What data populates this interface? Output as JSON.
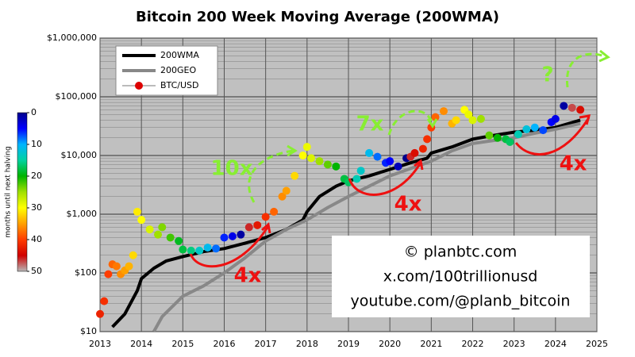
{
  "chart_data": {
    "type": "scatter",
    "title": "Bitcoin 200 Week Moving Average (200WMA)",
    "xlim": [
      2013,
      2025
    ],
    "xticks": [
      2013,
      2014,
      2015,
      2016,
      2017,
      2018,
      2019,
      2020,
      2021,
      2022,
      2023,
      2024,
      2025
    ],
    "ylim": [
      10,
      1000000
    ],
    "log_y": true,
    "grid": true,
    "yticks": [
      {
        "value": 10,
        "label": "$10"
      },
      {
        "value": 100,
        "label": "$100"
      },
      {
        "value": 1000,
        "label": "$1,000"
      },
      {
        "value": 10000,
        "label": "$10,000"
      },
      {
        "value": 100000,
        "label": "$100,000"
      },
      {
        "value": 1000000,
        "label": "$1,000,000"
      }
    ],
    "legend": "top-left",
    "colorbar": {
      "label": "months until next halving",
      "clim": [
        0,
        50
      ],
      "ticks": [
        0,
        10,
        20,
        30,
        40,
        50
      ],
      "colors": [
        "#00008b",
        "#0000ff",
        "#00b4ff",
        "#00d2a0",
        "#00b400",
        "#a0e000",
        "#ffff00",
        "#ffa000",
        "#ff3c00",
        "#d00000",
        "#b8b8b8"
      ]
    },
    "series": [
      {
        "name": "200WMA",
        "color": "#000000",
        "kind": "line",
        "width": 4,
        "x": [
          2013.3,
          2013.6,
          2013.9,
          2014.0,
          2014.3,
          2014.6,
          2015.0,
          2015.5,
          2016.0,
          2016.5,
          2017.0,
          2017.5,
          2017.9,
          2018.0,
          2018.3,
          2018.7,
          2019.0,
          2019.5,
          2020.0,
          2020.5,
          2020.9,
          2021.0,
          2021.5,
          2022.0,
          2022.5,
          2023.0,
          2023.5,
          2024.0,
          2024.6
        ],
        "values": [
          12,
          20,
          50,
          80,
          120,
          160,
          190,
          230,
          260,
          320,
          400,
          550,
          800,
          1100,
          2000,
          3000,
          3700,
          4500,
          5800,
          7500,
          9000,
          11000,
          14000,
          19000,
          22000,
          25000,
          27000,
          30000,
          40000
        ]
      },
      {
        "name": "200GEO",
        "color": "#888888",
        "kind": "line",
        "width": 4,
        "x": [
          2014.3,
          2014.5,
          2015.0,
          2015.5,
          2016.0,
          2016.5,
          2017.0,
          2017.5,
          2018.0,
          2018.5,
          2019.0,
          2019.5,
          2020.0,
          2020.5,
          2021.0,
          2021.5,
          2022.0,
          2022.5,
          2023.0,
          2023.5,
          2024.0,
          2024.6
        ],
        "values": [
          10,
          18,
          40,
          60,
          100,
          180,
          350,
          550,
          800,
          1300,
          2000,
          3000,
          4500,
          6000,
          8000,
          12000,
          16000,
          18000,
          20000,
          24000,
          28000,
          35000
        ]
      },
      {
        "name": "BTC/USD",
        "color": "#dd0000",
        "kind": "dots",
        "x": [
          2013.0,
          2013.1,
          2013.2,
          2013.3,
          2013.4,
          2013.5,
          2013.6,
          2013.7,
          2013.8,
          2013.9,
          2014.0,
          2014.2,
          2014.4,
          2014.5,
          2014.7,
          2014.9,
          2015.0,
          2015.2,
          2015.4,
          2015.6,
          2015.8,
          2016.0,
          2016.2,
          2016.4,
          2016.6,
          2016.8,
          2017.0,
          2017.2,
          2017.4,
          2017.5,
          2017.7,
          2017.9,
          2018.0,
          2018.1,
          2018.3,
          2018.5,
          2018.7,
          2018.9,
          2019.0,
          2019.2,
          2019.3,
          2019.5,
          2019.7,
          2019.9,
          2020.0,
          2020.2,
          2020.4,
          2020.5,
          2020.6,
          2020.8,
          2020.9,
          2021.0,
          2021.1,
          2021.3,
          2021.5,
          2021.6,
          2021.8,
          2021.9,
          2022.0,
          2022.2,
          2022.4,
          2022.6,
          2022.8,
          2022.9,
          2023.1,
          2023.3,
          2023.5,
          2023.7,
          2023.9,
          2024.0,
          2024.2,
          2024.4,
          2024.6
        ],
        "values": [
          20,
          33,
          95,
          140,
          130,
          95,
          110,
          130,
          200,
          1100,
          800,
          550,
          450,
          600,
          400,
          350,
          250,
          240,
          240,
          270,
          260,
          400,
          420,
          450,
          600,
          650,
          900,
          1100,
          2000,
          2500,
          4500,
          10000,
          14000,
          9000,
          8000,
          7000,
          6500,
          4000,
          3500,
          4000,
          5500,
          11000,
          9500,
          7500,
          8000,
          6500,
          9000,
          9500,
          11000,
          13000,
          19000,
          30000,
          45000,
          57000,
          35000,
          40000,
          60000,
          50000,
          40000,
          42000,
          22000,
          20000,
          19000,
          17000,
          23000,
          28000,
          30000,
          27000,
          37000,
          42000,
          70000,
          65000,
          60000
        ],
        "color_values": [
          42,
          41,
          40,
          38,
          37,
          36,
          35,
          34,
          32,
          31,
          30,
          28,
          25,
          24,
          22,
          19,
          18,
          16,
          13,
          11,
          8,
          6,
          4,
          1,
          46,
          43,
          41,
          38,
          36,
          35,
          32,
          30,
          29,
          28,
          25,
          23,
          20,
          18,
          17,
          14,
          13,
          11,
          8,
          6,
          5,
          2,
          0,
          46,
          44,
          42,
          41,
          40,
          38,
          36,
          34,
          32,
          30,
          29,
          28,
          25,
          23,
          20,
          18,
          17,
          14,
          12,
          10,
          7,
          5,
          4,
          1,
          47,
          44
        ]
      }
    ],
    "annotations": [
      "10x",
      "7x",
      "?",
      "4x",
      "4x",
      "4x"
    ],
    "text_box": [
      "© planbtc.com",
      "x.com/100trillionusd",
      "youtube.com/@planb_bitcoin"
    ]
  }
}
